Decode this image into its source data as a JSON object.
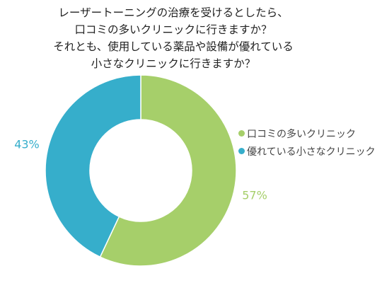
{
  "chart_data": {
    "type": "pie",
    "title_lines": [
      "レーザートーニングの治療を受けるとしたら、",
      "口コミの多いクリニックに行きますか？",
      "それとも、使用している薬品や設備が優れている",
      "小さなクリニックに行きますか？"
    ],
    "donut": true,
    "legend_position": "right",
    "categories": [
      "口コミの多いクリニック",
      "優れている小さなクリニック"
    ],
    "values": [
      57,
      43
    ],
    "value_labels": [
      "57%",
      "43%"
    ],
    "colors": [
      "#a6cf6a",
      "#36aecb"
    ]
  }
}
